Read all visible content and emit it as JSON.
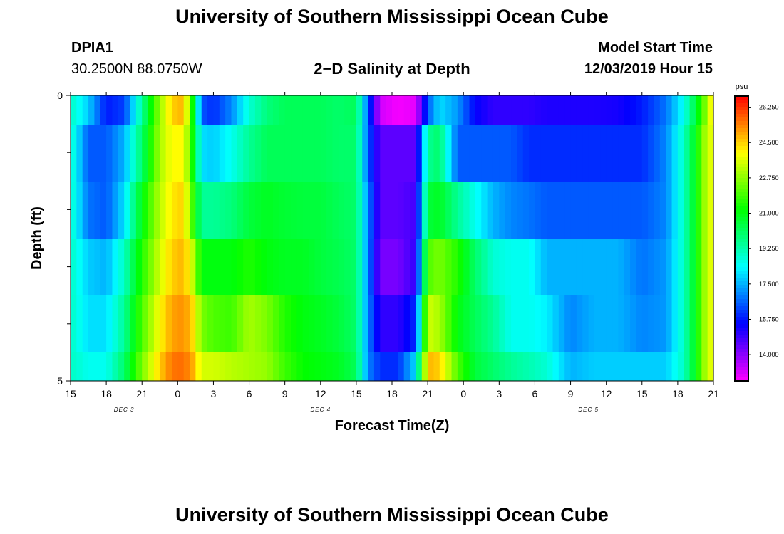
{
  "header": {
    "title": "University of Southern Mississippi Ocean Cube",
    "station_id": "DPIA1",
    "station_coords": "30.2500N 88.0750W",
    "plot_title": "2−D Salinity at Depth",
    "model_start_label": "Model Start Time",
    "model_start_value": "12/03/2019 Hour 15"
  },
  "footer": {
    "title": "University of Southern Mississippi Ocean Cube"
  },
  "chart_data": {
    "type": "heatmap",
    "title": "2−D Salinity at Depth",
    "xlabel": "Forecast Time(Z)",
    "ylabel": "Depth (ft)",
    "x_range": [
      0,
      54
    ],
    "y_range": [
      0,
      5
    ],
    "x_ticks": [
      {
        "t": 0,
        "label": "15"
      },
      {
        "t": 3,
        "label": "18"
      },
      {
        "t": 6,
        "label": "21"
      },
      {
        "t": 9,
        "label": "0"
      },
      {
        "t": 12,
        "label": "3"
      },
      {
        "t": 15,
        "label": "6"
      },
      {
        "t": 18,
        "label": "9"
      },
      {
        "t": 21,
        "label": "12"
      },
      {
        "t": 24,
        "label": "15"
      },
      {
        "t": 27,
        "label": "18"
      },
      {
        "t": 30,
        "label": "21"
      },
      {
        "t": 33,
        "label": "0"
      },
      {
        "t": 36,
        "label": "3"
      },
      {
        "t": 39,
        "label": "6"
      },
      {
        "t": 42,
        "label": "9"
      },
      {
        "t": 45,
        "label": "12"
      },
      {
        "t": 48,
        "label": "15"
      },
      {
        "t": 51,
        "label": "18"
      },
      {
        "t": 54,
        "label": "21"
      }
    ],
    "y_ticks": [
      {
        "d": 0,
        "label": "0"
      },
      {
        "d": 5,
        "label": "5"
      }
    ],
    "y_minor_ticks": [
      1,
      2,
      3,
      4
    ],
    "date_labels": [
      {
        "t": 4.5,
        "label": "DEC 3"
      },
      {
        "t": 21,
        "label": "DEC 4"
      },
      {
        "t": 43.5,
        "label": "DEC 5"
      }
    ],
    "colorbar": {
      "unit": "psu",
      "min": 12.7,
      "max": 26.8,
      "labels": [
        "26.250",
        "24.500",
        "22.750",
        "21.000",
        "19.250",
        "17.500",
        "15.750",
        "14.000"
      ],
      "label_values": [
        26.25,
        24.5,
        22.75,
        21.0,
        19.25,
        17.5,
        15.75,
        14.0
      ]
    },
    "anchor_hours": [
      0,
      1.5,
      3,
      4.5,
      6,
      7.5,
      8.5,
      9.5,
      10.2,
      11,
      12,
      13.5,
      15,
      16.5,
      18,
      19.5,
      21,
      22.5,
      24,
      25,
      26,
      27.5,
      29,
      30,
      31,
      32.5,
      34,
      35.5,
      37,
      38.5,
      40,
      42,
      44,
      46,
      48,
      50,
      51.5,
      52.5,
      53.3,
      54
    ],
    "rows": [
      {
        "depth": "0-0.5",
        "values": [
          19.0,
          17.8,
          15.8,
          16.2,
          19.5,
          22.8,
          24.5,
          24.8,
          21.5,
          16.5,
          16.0,
          17.0,
          18.8,
          19.8,
          20.2,
          20.2,
          20.2,
          20.0,
          20.2,
          16.5,
          13.2,
          12.8,
          13.0,
          16.5,
          18.0,
          17.2,
          15.5,
          15.0,
          15.0,
          15.0,
          15.2,
          15.2,
          15.2,
          15.3,
          15.8,
          16.8,
          18.5,
          20.5,
          22.5,
          24.5
        ]
      },
      {
        "depth": "0.5-1",
        "values": [
          19.0,
          16.5,
          16.5,
          17.5,
          20.0,
          23.0,
          24.0,
          24.0,
          21.5,
          18.0,
          17.8,
          18.5,
          19.5,
          20.2,
          20.2,
          20.2,
          20.2,
          20.0,
          20.0,
          16.5,
          14.5,
          14.5,
          14.5,
          19.5,
          20.0,
          16.5,
          16.5,
          16.5,
          16.5,
          16.0,
          16.0,
          16.0,
          16.0,
          16.0,
          16.0,
          17.0,
          19.0,
          21.0,
          23.0,
          24.0
        ]
      },
      {
        "depth": "1-2",
        "values": [
          19.0,
          16.8,
          16.5,
          18.0,
          21.0,
          23.2,
          24.2,
          24.5,
          22.0,
          19.5,
          19.5,
          19.8,
          20.5,
          20.8,
          20.6,
          20.5,
          20.5,
          20.2,
          20.0,
          17.0,
          14.5,
          14.5,
          14.8,
          20.5,
          20.8,
          19.5,
          18.5,
          17.5,
          17.0,
          16.8,
          16.5,
          16.5,
          16.5,
          16.5,
          16.5,
          17.0,
          19.0,
          21.0,
          23.0,
          24.0
        ]
      },
      {
        "depth": "2-3",
        "values": [
          19.0,
          17.8,
          17.5,
          19.0,
          21.5,
          23.5,
          24.5,
          24.8,
          23.5,
          21.0,
          21.0,
          21.0,
          21.5,
          21.0,
          20.8,
          20.8,
          20.5,
          20.3,
          20.0,
          17.0,
          14.2,
          14.2,
          15.0,
          22.0,
          22.5,
          21.5,
          20.0,
          18.8,
          18.5,
          18.5,
          17.5,
          17.5,
          17.5,
          17.5,
          16.8,
          17.2,
          19.0,
          21.0,
          23.0,
          24.0
        ]
      },
      {
        "depth": "3-4",
        "values": [
          19.0,
          18.0,
          18.0,
          19.5,
          22.0,
          24.0,
          25.0,
          25.2,
          24.5,
          22.5,
          22.0,
          21.8,
          23.0,
          22.5,
          21.5,
          21.0,
          20.8,
          20.5,
          20.0,
          17.0,
          15.0,
          15.0,
          16.0,
          23.5,
          23.0,
          21.0,
          20.2,
          19.5,
          18.5,
          18.5,
          18.2,
          17.0,
          17.5,
          17.5,
          17.0,
          17.2,
          19.0,
          21.0,
          23.0,
          24.0
        ]
      },
      {
        "depth": "4-5",
        "values": [
          19.0,
          18.5,
          18.5,
          20.0,
          22.5,
          24.5,
          25.5,
          25.6,
          25.0,
          23.5,
          23.5,
          23.2,
          23.0,
          22.8,
          21.8,
          21.2,
          21.0,
          20.8,
          20.2,
          17.0,
          16.0,
          16.0,
          18.0,
          24.8,
          24.5,
          22.0,
          20.5,
          20.0,
          19.5,
          19.2,
          18.8,
          17.5,
          17.8,
          17.8,
          17.8,
          17.8,
          19.0,
          21.0,
          23.0,
          24.0
        ]
      }
    ]
  }
}
